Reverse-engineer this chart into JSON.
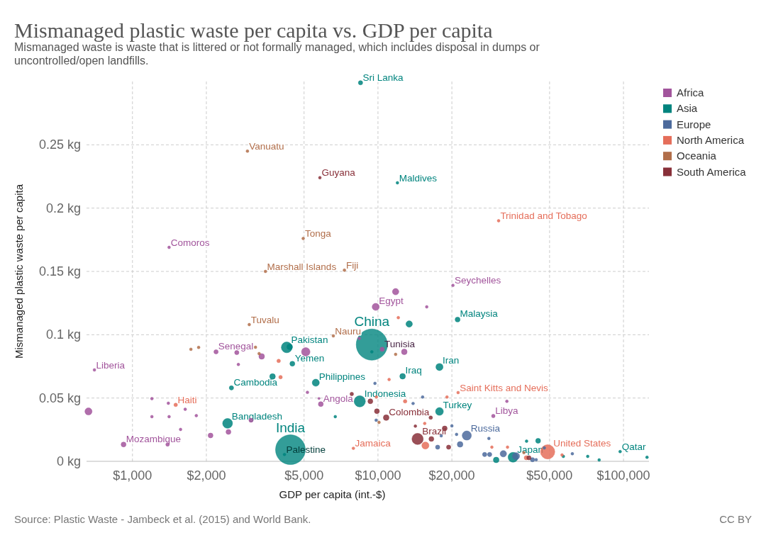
{
  "chart_data": {
    "type": "bubble",
    "title": "Mismanaged plastic waste per capita vs. GDP per capita",
    "subtitle": "Mismanaged waste is waste that is littered or not formally managed, which includes disposal in dumps or uncontrolled/open landfills.",
    "xlabel": "GDP per capita (int.-$)",
    "ylabel": "Mismanaged plastic waste per capita",
    "log": "x",
    "grid": true,
    "legend": "top right",
    "xlim": [
      650,
      127000
    ],
    "xticks": [
      {
        "value": 1000,
        "label": "$1,000"
      },
      {
        "value": 2000,
        "label": "$2,000"
      },
      {
        "value": 5000,
        "label": "$5,000"
      },
      {
        "value": 10000,
        "label": "$10,000"
      },
      {
        "value": 20000,
        "label": "$20,000"
      },
      {
        "value": 50000,
        "label": "$50,000"
      },
      {
        "value": 100000,
        "label": "$100,000"
      }
    ],
    "ylim": [
      0,
      0.3
    ],
    "yticks": [
      {
        "value": 0,
        "label": "0 kg"
      },
      {
        "value": 0.05,
        "label": "0.05 kg"
      },
      {
        "value": 0.1,
        "label": "0.1 kg"
      },
      {
        "value": 0.15,
        "label": "0.15 kg"
      },
      {
        "value": 0.2,
        "label": "0.2 kg"
      },
      {
        "value": 0.25,
        "label": "0.25 kg"
      }
    ],
    "series": [
      {
        "name": "Africa",
        "color": "#a2559c",
        "x": [
          1410,
          700,
          662,
          920,
          2190,
          2660,
          3360,
          2700,
          1200,
          1400,
          1640,
          1200,
          1410,
          1820,
          1570,
          1390,
          2080,
          2460,
          3040,
          5080,
          5160,
          5850,
          5750,
          8390,
          9790,
          11800,
          15800,
          20200,
          10400,
          12800,
          29500,
          33500
        ],
        "values": [
          0.169,
          0.0722,
          0.0394,
          0.0133,
          0.0865,
          0.0859,
          0.0829,
          0.0765,
          0.0495,
          0.0459,
          0.0411,
          0.0353,
          0.0353,
          0.0361,
          0.0252,
          0.0133,
          0.0204,
          0.0232,
          0.0325,
          0.0865,
          0.0545,
          0.0452,
          0.0497,
          0.0971,
          0.122,
          0.134,
          0.122,
          0.139,
          0.0885,
          0.0865,
          0.0358,
          0.0474
        ],
        "sizes": [
          0.008,
          0.008,
          0.052,
          0.025,
          0.019,
          0.019,
          0.033,
          0.008,
          0.008,
          0.008,
          0.008,
          0.008,
          0.008,
          0.008,
          0.008,
          0.013,
          0.025,
          0.025,
          0.019,
          0.074,
          0.008,
          0.025,
          0.005,
          0.008,
          0.052,
          0.042,
          0.008,
          0.008,
          0.019,
          0.033,
          0.013,
          0.008
        ]
      },
      {
        "name": "Asia",
        "color": "#00847e",
        "x": [
          8490,
          12000,
          9440,
          13400,
          21100,
          17800,
          12600,
          17800,
          8430,
          5580,
          4250,
          4370,
          4480,
          2530,
          3720,
          2440,
          4400,
          4160,
          6700,
          9440,
          96900,
          124700,
          35500,
          30300,
          44900,
          40300,
          71500,
          79600,
          56900
        ],
        "values": [
          0.299,
          0.22,
          0.0922,
          0.1085,
          0.112,
          0.0745,
          0.0672,
          0.0394,
          0.0474,
          0.0621,
          0.09,
          0.0904,
          0.0771,
          0.058,
          0.067,
          0.03,
          0.0092,
          0.0054,
          0.0353,
          0.0865,
          0.0077,
          0.0032,
          0.0032,
          0.0011,
          0.0162,
          0.0159,
          0.0039,
          0.0011,
          0.0039
        ],
        "sizes": [
          0.019,
          0.008,
          1,
          0.042,
          0.025,
          0.052,
          0.033,
          0.0625,
          0.13,
          0.052,
          0.12,
          0.033,
          0.025,
          0.019,
          0.033,
          0.1,
          0.91,
          0.008,
          0.008,
          0.008,
          0.008,
          0.008,
          0.1,
          0.033,
          0.025,
          0.008,
          0.008,
          0.008,
          0.008
        ]
      },
      {
        "name": "Europe",
        "color": "#4c6a9c",
        "x": [
          23000,
          21600,
          20000,
          20900,
          17500,
          18100,
          15200,
          13900,
          9720,
          9830,
          28300,
          27200,
          32400,
          36500,
          42600,
          47600,
          44100,
          28500,
          61900
        ],
        "values": [
          0.0204,
          0.0134,
          0.028,
          0.0213,
          0.0112,
          0.0202,
          0.0508,
          0.0457,
          0.0616,
          0.0325,
          0.0181,
          0.0054,
          0.006,
          0.0041,
          0.0013,
          0.0106,
          0.0013,
          0.0054,
          0.006
        ],
        "sizes": [
          0.087,
          0.033,
          0.008,
          0.008,
          0.019,
          0.008,
          0.008,
          0.008,
          0.008,
          0.008,
          0.008,
          0.019,
          0.042,
          0.052,
          0.019,
          0.008,
          0.008,
          0.019,
          0.008
        ]
      },
      {
        "name": "North America",
        "color": "#e56e5a",
        "x": [
          31000,
          21200,
          49100,
          1500,
          7940,
          3940,
          4010,
          15600,
          9850,
          11100,
          12900,
          19100,
          33700,
          29100,
          40200,
          56200,
          15500,
          12100
        ],
        "values": [
          0.19,
          0.0543,
          0.0075,
          0.0446,
          0.0103,
          0.0793,
          0.0665,
          0.0125,
          0.0508,
          0.0646,
          0.0474,
          0.0508,
          0.0112,
          0.0112,
          0.0028,
          0.005,
          0.0299,
          0.1135
        ],
        "sizes": [
          0.008,
          0.008,
          0.21,
          0.013,
          0.008,
          0.013,
          0.013,
          0.052,
          0.008,
          0.008,
          0.013,
          0.008,
          0.008,
          0.008,
          0.019,
          0.008,
          0.008,
          0.008
        ]
      },
      {
        "name": "Oceania",
        "color": "#b16e4a",
        "x": [
          2940,
          4960,
          3480,
          7300,
          2990,
          6580,
          1730,
          1860,
          3170,
          3280,
          11800,
          10100,
          39300
        ],
        "values": [
          0.245,
          0.176,
          0.15,
          0.151,
          0.108,
          0.0991,
          0.0885,
          0.09,
          0.0901,
          0.0851,
          0.0845,
          0.0308,
          0.0069
        ],
        "sizes": [
          0.008,
          0.008,
          0.008,
          0.008,
          0.008,
          0.008,
          0.008,
          0.008,
          0.008,
          0.008,
          0.008,
          0.008,
          0.008
        ]
      },
      {
        "name": "South America",
        "color": "#883039",
        "x": [
          5800,
          10800,
          9900,
          9310,
          7820,
          18700,
          14500,
          16500,
          16400,
          19400,
          14200,
          41200
        ],
        "values": [
          0.224,
          0.0345,
          0.0396,
          0.0474,
          0.0532,
          0.026,
          0.0177,
          0.0177,
          0.0345,
          0.0112,
          0.0278,
          0.0028
        ],
        "sizes": [
          0.008,
          0.033,
          0.025,
          0.025,
          0.013,
          0.025,
          0.13,
          0.025,
          0.013,
          0.019,
          0.008,
          0.019
        ]
      }
    ],
    "annotations": [
      {
        "text": "Sri Lanka",
        "x": 8490,
        "y": 0.299
      },
      {
        "text": "Vanuatu",
        "x": 2940,
        "y": 0.245
      },
      {
        "text": "Guyana",
        "x": 5800,
        "y": 0.224
      },
      {
        "text": "Maldives",
        "x": 12000,
        "y": 0.22
      },
      {
        "text": "Trinidad and Tobago",
        "x": 31000,
        "y": 0.19
      },
      {
        "text": "Tonga",
        "x": 4960,
        "y": 0.176
      },
      {
        "text": "Comoros",
        "x": 1410,
        "y": 0.169
      },
      {
        "text": "Marshall Islands",
        "x": 3480,
        "y": 0.15
      },
      {
        "text": "Fiji",
        "x": 7300,
        "y": 0.151
      },
      {
        "text": "Seychelles",
        "x": 20200,
        "y": 0.139
      },
      {
        "text": "Egypt",
        "x": 9790,
        "y": 0.122
      },
      {
        "text": "Malaysia",
        "x": 21100,
        "y": 0.112
      },
      {
        "text": "Tuvalu",
        "x": 2990,
        "y": 0.108
      },
      {
        "text": "China",
        "x": 9440,
        "y": 0.0922
      },
      {
        "text": "Nauru",
        "x": 6580,
        "y": 0.0991
      },
      {
        "text": "Pakistan",
        "x": 4250,
        "y": 0.09
      },
      {
        "text": "Senegal",
        "x": 2190,
        "y": 0.0865
      },
      {
        "text": "Tunisia",
        "x": 10400,
        "y": 0.0885
      },
      {
        "text": "Yemen",
        "x": 4480,
        "y": 0.0771
      },
      {
        "text": "Iran",
        "x": 17800,
        "y": 0.0745
      },
      {
        "text": "Liberia",
        "x": 700,
        "y": 0.0722
      },
      {
        "text": "Iraq",
        "x": 12600,
        "y": 0.0672
      },
      {
        "text": "Philippines",
        "x": 5580,
        "y": 0.0621
      },
      {
        "text": "Cambodia",
        "x": 2530,
        "y": 0.058
      },
      {
        "text": "Saint Kitts and Nevis",
        "x": 21200,
        "y": 0.0543
      },
      {
        "text": "Indonesia",
        "x": 8430,
        "y": 0.0474
      },
      {
        "text": "Angola",
        "x": 5850,
        "y": 0.0452
      },
      {
        "text": "Haiti",
        "x": 1500,
        "y": 0.0446
      },
      {
        "text": "Turkey",
        "x": 17800,
        "y": 0.0394
      },
      {
        "text": "Libya",
        "x": 29500,
        "y": 0.0358
      },
      {
        "text": "Colombia",
        "x": 10800,
        "y": 0.0345
      },
      {
        "text": "Bangladesh",
        "x": 2440,
        "y": 0.03
      },
      {
        "text": "Russia",
        "x": 23000,
        "y": 0.0204
      },
      {
        "text": "Brazil",
        "x": 14500,
        "y": 0.0177
      },
      {
        "text": "India",
        "x": 4400,
        "y": 0.0092
      },
      {
        "text": "Mozambique",
        "x": 920,
        "y": 0.0133
      },
      {
        "text": "Jamaica",
        "x": 7940,
        "y": 0.0103
      },
      {
        "text": "United States",
        "x": 49100,
        "y": 0.0075
      },
      {
        "text": "Palestine",
        "x": 4160,
        "y": 0.0054
      },
      {
        "text": "Japan",
        "x": 35500,
        "y": 0.0032
      },
      {
        "text": "Qatar",
        "x": 96900,
        "y": 0.0077
      },
      "Source: Plastic Waste - Jambeck et al. (2015) and World Bank.",
      "CC BY"
    ]
  }
}
